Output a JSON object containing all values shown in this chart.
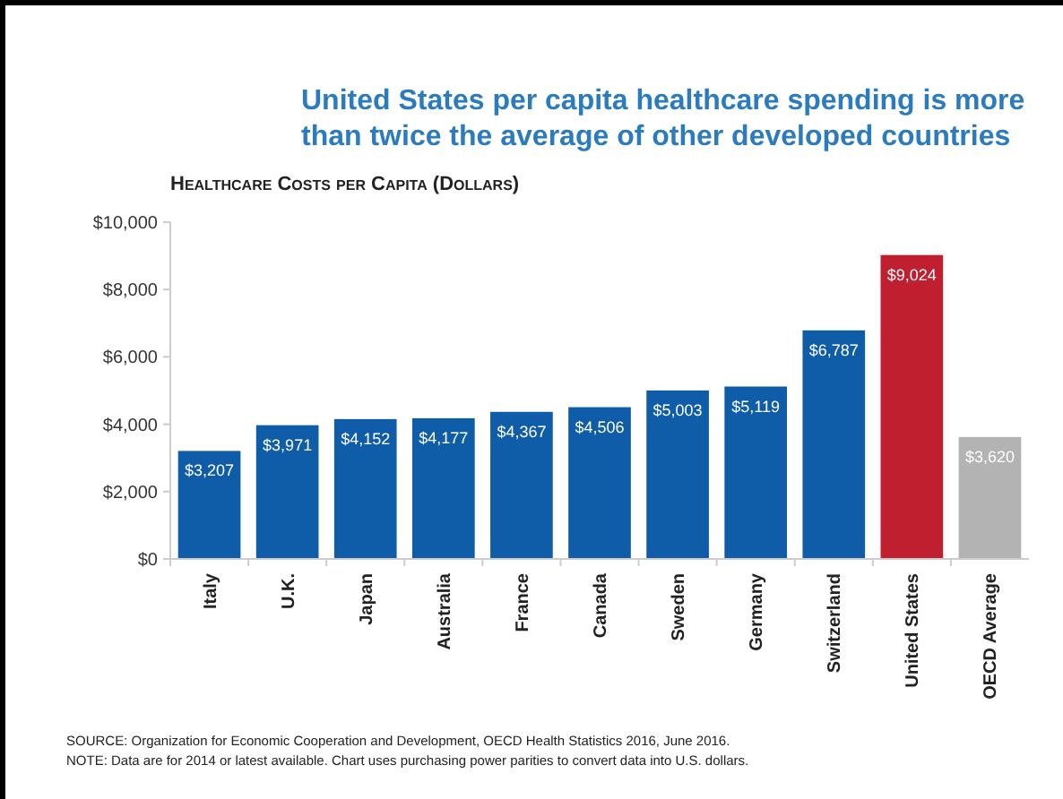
{
  "chart_data": {
    "type": "bar",
    "title": "United States per capita healthcare spending is more than twice the average of other developed countries",
    "subtitle": "Healthcare Costs per Capita (Dollars)",
    "categories": [
      "Italy",
      "U.K.",
      "Japan",
      "Australia",
      "France",
      "Canada",
      "Sweden",
      "Germany",
      "Switzerland",
      "United States",
      "OECD Average"
    ],
    "values": [
      3207,
      3971,
      4152,
      4177,
      4367,
      4506,
      5003,
      5119,
      6787,
      9024,
      3620
    ],
    "value_labels": [
      "$3,207",
      "$3,971",
      "$4,152",
      "$4,177",
      "$4,367",
      "$4,506",
      "$5,003",
      "$5,119",
      "$6,787",
      "$9,024",
      "$3,620"
    ],
    "colors": [
      "#0f5ca8",
      "#0f5ca8",
      "#0f5ca8",
      "#0f5ca8",
      "#0f5ca8",
      "#0f5ca8",
      "#0f5ca8",
      "#0f5ca8",
      "#0f5ca8",
      "#c01f2f",
      "#b3b3b3"
    ],
    "ylim": [
      0,
      10000
    ],
    "yticks": [
      {
        "value": 0,
        "label": "$0"
      },
      {
        "value": 2000,
        "label": "$2,000"
      },
      {
        "value": 4000,
        "label": "$4,000"
      },
      {
        "value": 6000,
        "label": "$6,000"
      },
      {
        "value": 8000,
        "label": "$8,000"
      },
      {
        "value": 10000,
        "label": "$10,000"
      }
    ],
    "grid": false,
    "annotations": [
      "SOURCE: Organization for Economic Cooperation and Development, OECD Health Statistics 2016, June 2016.",
      "NOTE: Data are for 2014 or latest available. Chart uses purchasing power parities to convert data into U.S. dollars."
    ]
  }
}
